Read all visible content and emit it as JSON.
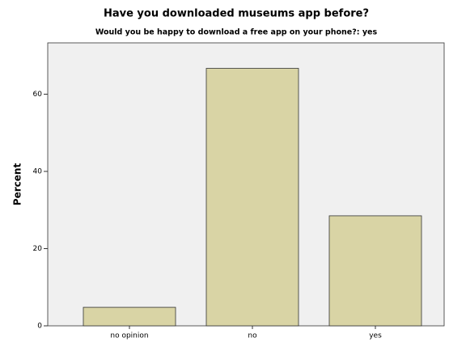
{
  "chart_data": {
    "type": "bar",
    "title": "Have you downloaded museums app before?",
    "subtitle": "Would you be happy to download a free app on your phone?: yes",
    "y_label": "Percent",
    "categories": [
      "no opinion",
      "no",
      "yes"
    ],
    "values": [
      4.8,
      66.7,
      28.5
    ],
    "color": "#d9d4a5",
    "ylim": [
      0,
      73.3
    ],
    "yticks": [
      0,
      20,
      40,
      60
    ],
    "grid": false
  }
}
